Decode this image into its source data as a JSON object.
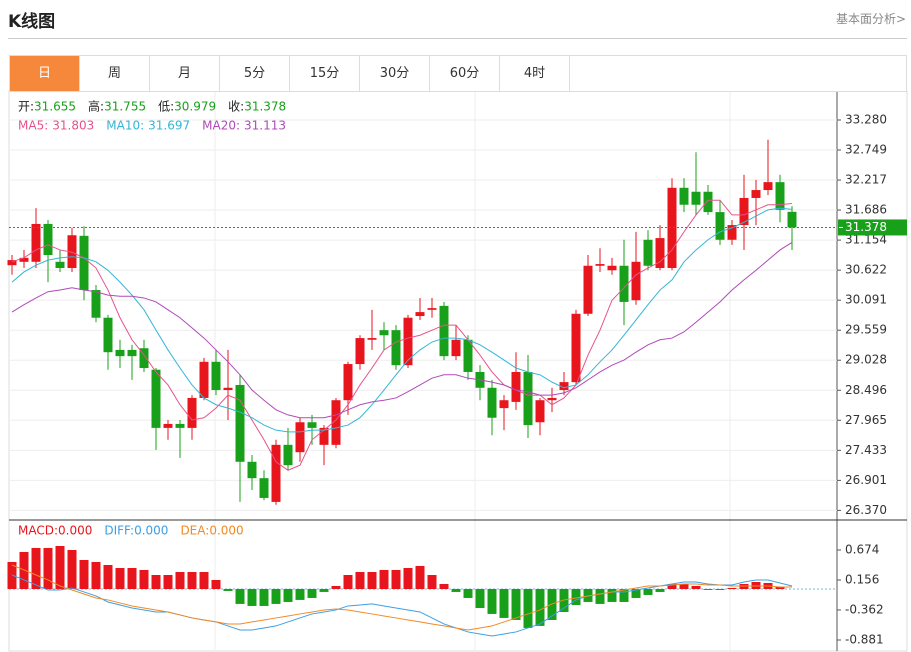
{
  "header": {
    "title": "K线图",
    "link": "基本面分析>"
  },
  "tabs": [
    "日",
    "周",
    "月",
    "5分",
    "15分",
    "30分",
    "60分",
    "4时"
  ],
  "active_tab": 0,
  "chart_data": [
    {
      "type": "candlestick",
      "info_labels": [
        "开:",
        "高:",
        "低:",
        "收:"
      ],
      "up_color": "#e8151c",
      "down_color": "#18a01a",
      "open": [
        30.71,
        30.77,
        30.77,
        31.44,
        30.77,
        30.66,
        31.23,
        30.27,
        29.78,
        29.21,
        29.21,
        29.24,
        28.86,
        27.83,
        27.9,
        27.83,
        28.36,
        29.0,
        28.5,
        28.59,
        27.23,
        26.94,
        26.52,
        27.53,
        27.4,
        27.93,
        27.53,
        27.53,
        28.32,
        28.96,
        29.39,
        29.56,
        29.56,
        28.94,
        29.81,
        29.92,
        29.99,
        29.1,
        29.39,
        28.82,
        28.54,
        28.18,
        28.29,
        28.82,
        27.93,
        28.32,
        28.5,
        28.64,
        29.85,
        30.7,
        30.62,
        30.7,
        30.09,
        31.16,
        30.66,
        30.66,
        32.08,
        32.01,
        32.01,
        31.65,
        31.16,
        31.42,
        31.9,
        32.04,
        32.18,
        31.655
      ],
      "high": [
        30.89,
        30.98,
        31.72,
        31.51,
        30.98,
        31.37,
        31.4,
        30.36,
        29.83,
        29.39,
        29.3,
        29.39,
        28.89,
        27.97,
        27.97,
        28.41,
        29.07,
        29.21,
        29.21,
        28.77,
        27.35,
        27.08,
        27.62,
        27.83,
        28.01,
        28.06,
        27.88,
        28.36,
        29.0,
        29.47,
        29.92,
        29.7,
        29.65,
        29.83,
        30.13,
        30.13,
        30.06,
        29.65,
        29.47,
        28.94,
        28.68,
        28.41,
        29.17,
        29.12,
        28.36,
        28.54,
        28.82,
        29.92,
        30.89,
        31.01,
        30.84,
        31.16,
        31.3,
        31.33,
        31.42,
        32.25,
        32.25,
        32.71,
        32.13,
        31.86,
        31.51,
        32.31,
        32.22,
        32.93,
        32.31,
        31.755
      ],
      "low": [
        30.54,
        30.66,
        30.66,
        30.41,
        30.59,
        30.59,
        30.09,
        29.7,
        28.86,
        28.89,
        28.68,
        28.82,
        27.44,
        27.62,
        27.3,
        27.62,
        28.32,
        28.41,
        27.97,
        26.52,
        26.73,
        26.55,
        26.47,
        27.08,
        27.23,
        27.53,
        27.17,
        27.47,
        28.06,
        28.86,
        29.21,
        29.21,
        28.86,
        28.89,
        29.74,
        29.78,
        29.03,
        29.03,
        28.68,
        28.32,
        27.7,
        27.79,
        28.15,
        27.65,
        27.7,
        28.11,
        28.41,
        28.59,
        29.81,
        30.59,
        30.54,
        29.65,
        30.01,
        30.62,
        30.62,
        30.62,
        31.65,
        31.6,
        31.6,
        31.07,
        31.07,
        30.98,
        31.42,
        31.95,
        31.47,
        30.979
      ],
      "close": [
        30.8,
        30.84,
        31.44,
        30.89,
        30.66,
        31.24,
        30.27,
        29.78,
        29.17,
        29.1,
        29.1,
        28.89,
        27.83,
        27.9,
        27.83,
        28.36,
        29.0,
        28.5,
        28.54,
        27.23,
        26.94,
        26.59,
        27.53,
        27.17,
        27.93,
        27.83,
        27.83,
        28.32,
        28.96,
        29.42,
        29.42,
        29.47,
        28.94,
        29.78,
        29.88,
        29.95,
        29.1,
        29.39,
        28.82,
        28.54,
        28.01,
        28.32,
        28.82,
        27.88,
        28.32,
        28.36,
        28.64,
        29.85,
        30.7,
        30.73,
        30.7,
        30.06,
        30.77,
        30.7,
        31.19,
        32.08,
        31.78,
        31.78,
        31.65,
        31.16,
        31.42,
        31.9,
        32.04,
        32.18,
        31.69,
        31.378
      ],
      "series": [
        {
          "name": "MA5:",
          "color": "#e6538c",
          "values": [
            30.77,
            30.84,
            30.98,
            31.07,
            30.98,
            30.94,
            30.84,
            30.66,
            30.27,
            29.78,
            29.39,
            29.12,
            28.82,
            28.59,
            28.24,
            27.97,
            28.01,
            28.18,
            28.41,
            28.32,
            27.97,
            27.62,
            27.23,
            27.08,
            27.17,
            27.62,
            27.79,
            27.97,
            28.24,
            28.59,
            28.89,
            29.21,
            29.35,
            29.42,
            29.47,
            29.56,
            29.65,
            29.65,
            29.39,
            29.12,
            28.82,
            28.59,
            28.5,
            28.41,
            28.41,
            28.24,
            28.36,
            28.59,
            29.12,
            29.56,
            30.09,
            30.31,
            30.54,
            30.66,
            30.77,
            30.98,
            31.3,
            31.6,
            31.86,
            31.86,
            31.6,
            31.6,
            31.69,
            31.78,
            31.78,
            31.803
          ]
        },
        {
          "name": "MA10:",
          "color": "#34b6d4",
          "values": [
            30.41,
            30.59,
            30.71,
            30.8,
            30.84,
            30.86,
            30.84,
            30.77,
            30.62,
            30.41,
            30.18,
            29.92,
            29.56,
            29.21,
            28.89,
            28.59,
            28.36,
            28.24,
            28.18,
            28.11,
            28.01,
            27.88,
            27.79,
            27.76,
            27.76,
            27.79,
            27.79,
            27.83,
            27.88,
            28.01,
            28.24,
            28.5,
            28.77,
            29.03,
            29.21,
            29.35,
            29.42,
            29.42,
            29.39,
            29.3,
            29.17,
            29.03,
            28.89,
            28.82,
            28.77,
            28.64,
            28.54,
            28.59,
            28.77,
            29.0,
            29.21,
            29.47,
            29.74,
            30.01,
            30.27,
            30.45,
            30.77,
            30.98,
            31.16,
            31.3,
            31.37,
            31.47,
            31.58,
            31.69,
            31.72,
            31.697
          ]
        },
        {
          "name": "MA20:",
          "color": "#b04ab8",
          "values": [
            29.88,
            30.01,
            30.13,
            30.24,
            30.27,
            30.31,
            30.27,
            30.24,
            30.18,
            30.16,
            30.16,
            30.13,
            30.06,
            29.92,
            29.78,
            29.6,
            29.42,
            29.21,
            29.0,
            28.77,
            28.5,
            28.32,
            28.15,
            28.06,
            28.01,
            28.01,
            28.01,
            28.06,
            28.15,
            28.24,
            28.29,
            28.32,
            28.36,
            28.47,
            28.59,
            28.71,
            28.77,
            28.77,
            28.71,
            28.68,
            28.64,
            28.59,
            28.5,
            28.47,
            28.41,
            28.41,
            28.45,
            28.54,
            28.68,
            28.82,
            28.94,
            29.03,
            29.17,
            29.3,
            29.39,
            29.42,
            29.53,
            29.7,
            29.88,
            30.06,
            30.27,
            30.45,
            30.62,
            30.8,
            30.98,
            31.113
          ]
        }
      ],
      "ylim": [
        26.235,
        33.758
      ],
      "yticks": [
        {
          "value": 33.28,
          "label": "33.280"
        },
        32.749,
        32.217,
        31.686,
        31.154,
        30.622,
        30.091,
        29.559,
        29.028,
        28.496,
        27.965,
        27.433,
        26.901,
        {
          "value": 26.37,
          "label": "26.370"
        }
      ],
      "grid": true
    },
    {
      "type": "macd",
      "up_color": "#e8151c",
      "down_color": "#18a01a",
      "histogram": {
        "name": "MACD:",
        "color": "#e8151c",
        "reading": {
          "value": 0,
          "label": "0.000"
        },
        "values": [
          0.467,
          0.64,
          0.709,
          0.709,
          0.743,
          0.674,
          0.501,
          0.467,
          0.415,
          0.363,
          0.363,
          0.329,
          0.242,
          0.242,
          0.294,
          0.294,
          0.294,
          0.156,
          -0.034,
          -0.258,
          -0.293,
          -0.293,
          -0.258,
          -0.224,
          -0.189,
          -0.155,
          -0.051,
          0.052,
          0.242,
          0.294,
          0.294,
          0.329,
          0.329,
          0.363,
          0.398,
          0.242,
          0.087,
          -0.051,
          -0.155,
          -0.328,
          -0.431,
          -0.5,
          -0.535,
          -0.673,
          -0.638,
          -0.535,
          -0.397,
          -0.276,
          -0.224,
          -0.258,
          -0.224,
          -0.224,
          -0.155,
          -0.103,
          -0.051,
          0.087,
          0.087,
          0.052,
          -0.017,
          -0.017,
          0.018,
          0.087,
          0.121,
          0.104,
          0.035,
          0
        ]
      },
      "series": [
        {
          "name": "DIFF:",
          "color": "#3d9fe3",
          "reading": {
            "value": 0,
            "label": "0.000"
          },
          "values": [
            0.242,
            0.156,
            0.07,
            -0.017,
            -0.017,
            0.018,
            -0.051,
            -0.12,
            -0.224,
            -0.276,
            -0.328,
            -0.362,
            -0.397,
            -0.397,
            -0.448,
            -0.5,
            -0.535,
            -0.569,
            -0.638,
            -0.708,
            -0.708,
            -0.673,
            -0.638,
            -0.569,
            -0.5,
            -0.431,
            -0.397,
            -0.362,
            -0.293,
            -0.276,
            -0.258,
            -0.293,
            -0.328,
            -0.362,
            -0.397,
            -0.5,
            -0.604,
            -0.673,
            -0.742,
            -0.777,
            -0.811,
            -0.777,
            -0.742,
            -0.673,
            -0.604,
            -0.466,
            -0.328,
            -0.189,
            -0.12,
            -0.086,
            -0.051,
            -0.051,
            -0.017,
            0.018,
            0.052,
            0.087,
            0.121,
            0.121,
            0.087,
            0.07,
            0.07,
            0.121,
            0.156,
            0.156,
            0.104,
            0.052
          ]
        },
        {
          "name": "DEA:",
          "color": "#f08a24",
          "reading": {
            "value": 0,
            "label": "0.000"
          },
          "values": [
            0.415,
            0.329,
            0.242,
            0.156,
            0.052,
            -0.017,
            -0.086,
            -0.155,
            -0.189,
            -0.241,
            -0.293,
            -0.328,
            -0.362,
            -0.397,
            -0.448,
            -0.5,
            -0.535,
            -0.569,
            -0.604,
            -0.604,
            -0.569,
            -0.535,
            -0.5,
            -0.466,
            -0.431,
            -0.397,
            -0.362,
            -0.345,
            -0.362,
            -0.397,
            -0.431,
            -0.466,
            -0.5,
            -0.535,
            -0.569,
            -0.604,
            -0.638,
            -0.673,
            -0.708,
            -0.673,
            -0.638,
            -0.569,
            -0.5,
            -0.431,
            -0.362,
            -0.258,
            -0.189,
            -0.155,
            -0.12,
            -0.086,
            -0.051,
            -0.017,
            0.018,
            0.052,
            0.052,
            0.07,
            0.087,
            0.087,
            0.07,
            0.07,
            0.052,
            0.052,
            0.052,
            0.052,
            0.035,
            0.035
          ]
        }
      ],
      "ylim": [
        -1.054,
        1.175
      ],
      "yticks": [
        0.674,
        0.156,
        -0.362,
        -0.881
      ],
      "grid": false
    }
  ]
}
